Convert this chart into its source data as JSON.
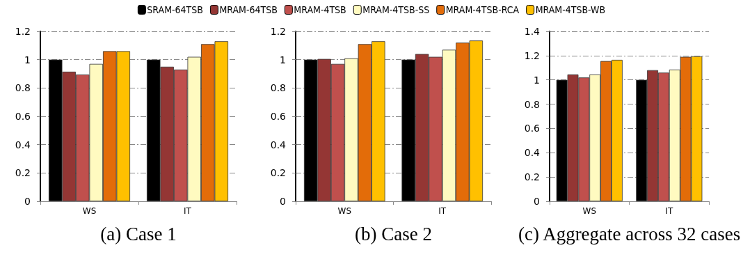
{
  "chart_data": [
    {
      "type": "bar",
      "xlabel": "(a) Case 1",
      "categories": [
        "WS",
        "IT"
      ],
      "ylim": [
        0,
        1.2
      ],
      "yticks": [
        0,
        0.2,
        0.4,
        0.6,
        0.8,
        1,
        1.2
      ],
      "grid": "y",
      "legend": "top",
      "series": [
        {
          "name": "SRAM-64TSB",
          "color": "#000000",
          "values": [
            1,
            1
          ]
        },
        {
          "name": "MRAM-64TSB",
          "color": "#943634",
          "values": [
            0.915,
            0.95
          ]
        },
        {
          "name": "MRAM-4TSB",
          "color": "#c0504d",
          "values": [
            0.895,
            0.93
          ]
        },
        {
          "name": "MRAM-4TSB-SS",
          "color": "#fffac0",
          "values": [
            0.97,
            1.02
          ]
        },
        {
          "name": "MRAM-4TSB-RCA",
          "color": "#e36c09",
          "values": [
            1.06,
            1.11
          ]
        },
        {
          "name": "MRAM-4TSB-WB",
          "color": "#ffc000",
          "values": [
            1.06,
            1.13
          ]
        }
      ]
    },
    {
      "type": "bar",
      "xlabel": "(b) Case 2",
      "categories": [
        "WS",
        "IT"
      ],
      "ylim": [
        0,
        1.2
      ],
      "yticks": [
        0,
        0.2,
        0.4,
        0.6,
        0.8,
        1,
        1.2
      ],
      "grid": "y",
      "legend": "top",
      "series": [
        {
          "name": "SRAM-64TSB",
          "color": "#000000",
          "values": [
            1,
            1
          ]
        },
        {
          "name": "MRAM-64TSB",
          "color": "#943634",
          "values": [
            1.005,
            1.04
          ]
        },
        {
          "name": "MRAM-4TSB",
          "color": "#c0504d",
          "values": [
            0.97,
            1.02
          ]
        },
        {
          "name": "MRAM-4TSB-SS",
          "color": "#fffac0",
          "values": [
            1.01,
            1.07
          ]
        },
        {
          "name": "MRAM-4TSB-RCA",
          "color": "#e36c09",
          "values": [
            1.11,
            1.12
          ]
        },
        {
          "name": "MRAM-4TSB-WB",
          "color": "#ffc000",
          "values": [
            1.13,
            1.135
          ]
        }
      ]
    },
    {
      "type": "bar",
      "xlabel": "(c) Aggregate across 32 cases",
      "categories": [
        "WS",
        "IT"
      ],
      "ylim": [
        0,
        1.4
      ],
      "yticks": [
        0,
        0.2,
        0.4,
        0.6,
        0.8,
        1,
        1.2,
        1.4
      ],
      "grid": "y",
      "legend": "top",
      "series": [
        {
          "name": "SRAM-64TSB",
          "color": "#000000",
          "values": [
            1,
            1
          ]
        },
        {
          "name": "MRAM-64TSB",
          "color": "#943634",
          "values": [
            1.045,
            1.08
          ]
        },
        {
          "name": "MRAM-4TSB",
          "color": "#c0504d",
          "values": [
            1.02,
            1.06
          ]
        },
        {
          "name": "MRAM-4TSB-SS",
          "color": "#fffac0",
          "values": [
            1.045,
            1.085
          ]
        },
        {
          "name": "MRAM-4TSB-RCA",
          "color": "#e36c09",
          "values": [
            1.155,
            1.19
          ]
        },
        {
          "name": "MRAM-4TSB-WB",
          "color": "#ffc000",
          "values": [
            1.165,
            1.195
          ]
        }
      ]
    }
  ]
}
